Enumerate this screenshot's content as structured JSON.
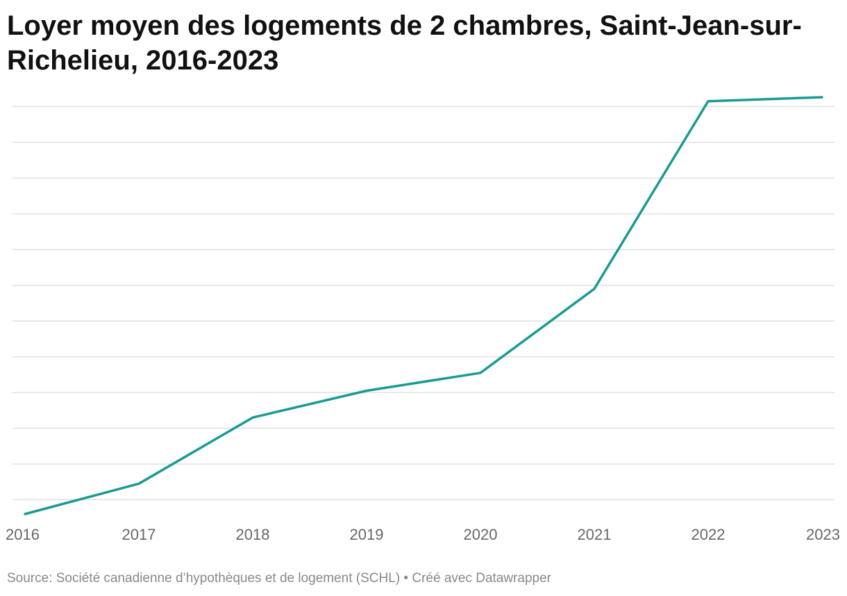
{
  "title": "Loyer moyen des logements de 2 chambres, Saint-Jean-sur-Richelieu, 2016-2023",
  "footer": {
    "source": "Source: Société canadienne d’hypothèques et de logement (SCHL)",
    "separator": " • ",
    "credit": "Créé avec Datawrapper"
  },
  "chart_data": {
    "type": "line",
    "title": "Loyer moyen des logements de 2 chambres, Saint-Jean-sur-Richelieu, 2016-2023",
    "x": [
      "2016",
      "2017",
      "2018",
      "2019",
      "2020",
      "2021",
      "2022",
      "2023"
    ],
    "series": [
      {
        "values": [
          0.6,
          1.45,
          3.3,
          4.05,
          4.55,
          6.9,
          12.15,
          12.26
        ]
      }
    ],
    "ylim": [
      0.95,
      11.95
    ],
    "gridlines_y": [
      1,
      2,
      3,
      4,
      5,
      6,
      7,
      8,
      9,
      10,
      11,
      12
    ],
    "grid": true,
    "legend": "none",
    "colors": {
      "line": "#1a9a94",
      "grid": "#e0e0e0",
      "tick_text": "#666666"
    }
  }
}
